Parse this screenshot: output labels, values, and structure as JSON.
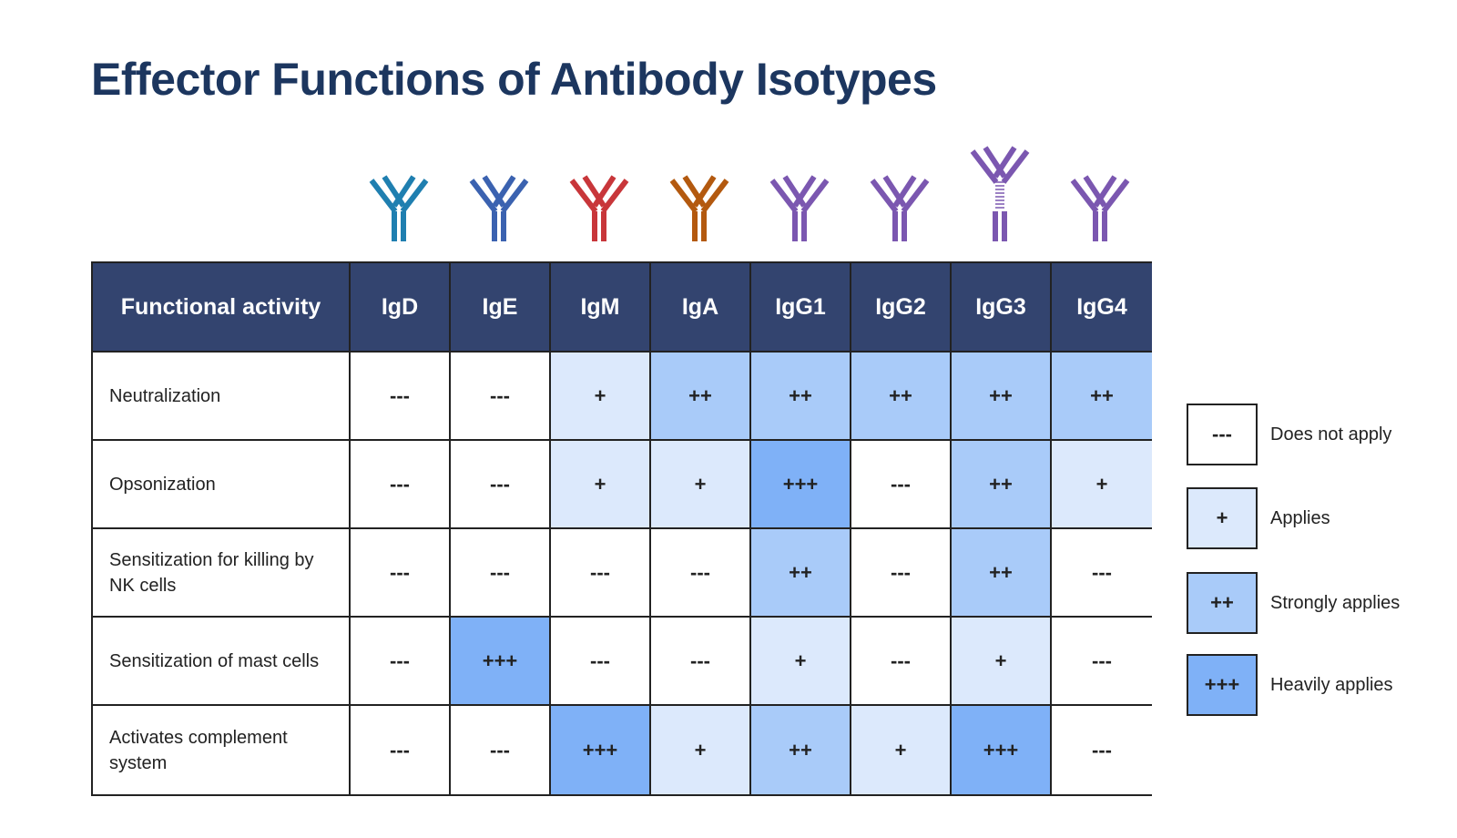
{
  "title": "Effector Functions of Antibody Isotypes",
  "table": {
    "header": [
      "Functional activity",
      "IgD",
      "IgE",
      "IgM",
      "IgA",
      "IgG1",
      "IgG2",
      "IgG3",
      "IgG4"
    ],
    "rows": [
      [
        "Neutralization",
        "---",
        "---",
        "+",
        "++",
        "++",
        "++",
        "++",
        "++"
      ],
      [
        "Opsonization",
        "---",
        "---",
        "+",
        "+",
        "+++",
        "---",
        "++",
        "+"
      ],
      [
        "Sensitization for killing by NK cells",
        "---",
        "---",
        "---",
        "---",
        "++",
        "---",
        "++",
        "---"
      ],
      [
        "Sensitization of mast cells",
        "---",
        "+++",
        "---",
        "---",
        "+",
        "---",
        "+",
        "---"
      ],
      [
        "Activates complement system",
        "---",
        "---",
        "+++",
        "+",
        "++",
        "+",
        "+++",
        "---"
      ]
    ]
  },
  "legend": [
    {
      "symbol": "---",
      "label": "Does not apply",
      "color": "#ffffff"
    },
    {
      "symbol": "+",
      "label": "Applies",
      "color": "#dce9fc"
    },
    {
      "symbol": "++",
      "label": "Strongly applies",
      "color": "#a9cbf9"
    },
    {
      "symbol": "+++",
      "label": "Heavily applies",
      "color": "#7fb1f7"
    }
  ]
}
